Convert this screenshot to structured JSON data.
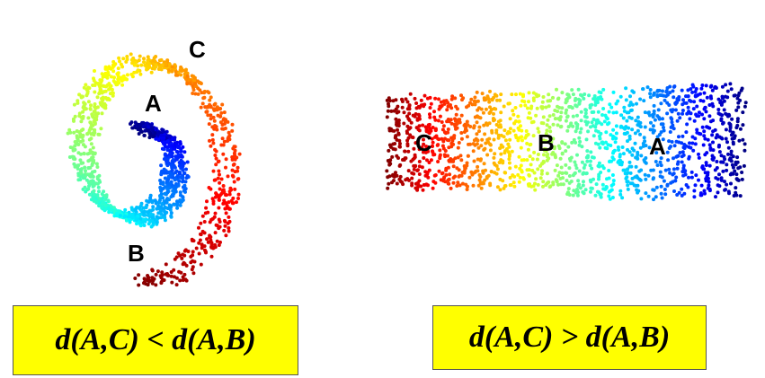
{
  "left_panel": {
    "labels": {
      "a": "A",
      "b": "B",
      "c": "C"
    }
  },
  "right_panel": {
    "labels": {
      "a": "A",
      "b": "B",
      "c": "C"
    }
  },
  "formulas": {
    "left": "d(A,C) < d(A,B)",
    "right": "d(A,C) > d(A,B)"
  },
  "colors": {
    "formula_box_fill": "#ffff00",
    "colormap": "jet"
  }
}
